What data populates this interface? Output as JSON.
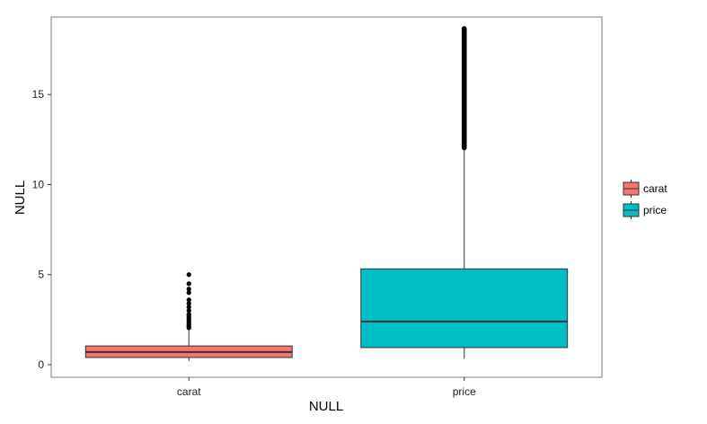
{
  "chart_data": {
    "type": "box",
    "title": "",
    "xlabel": "NULL",
    "ylabel": "NULL",
    "ylim": [
      -0.7,
      19.3
    ],
    "yticks": [
      0,
      5,
      10,
      15
    ],
    "grid": false,
    "legend_position": "right",
    "categories": [
      "carat",
      "price"
    ],
    "series": [
      {
        "name": "carat",
        "color": "#F8766D",
        "min": 0.2,
        "q1": 0.4,
        "median": 0.7,
        "q3": 1.04,
        "max": 2.0,
        "outliers": [
          2.05,
          2.1,
          2.2,
          2.3,
          2.4,
          2.5,
          2.6,
          2.7,
          2.8,
          3.0,
          3.2,
          3.4,
          3.6,
          4.0,
          4.2,
          4.5,
          5.0
        ]
      },
      {
        "name": "price",
        "color": "#00BFC4",
        "min": 0.33,
        "q1": 0.95,
        "median": 2.4,
        "q3": 5.32,
        "max": 11.9,
        "outlier_range": [
          11.9,
          18.8
        ]
      }
    ]
  }
}
